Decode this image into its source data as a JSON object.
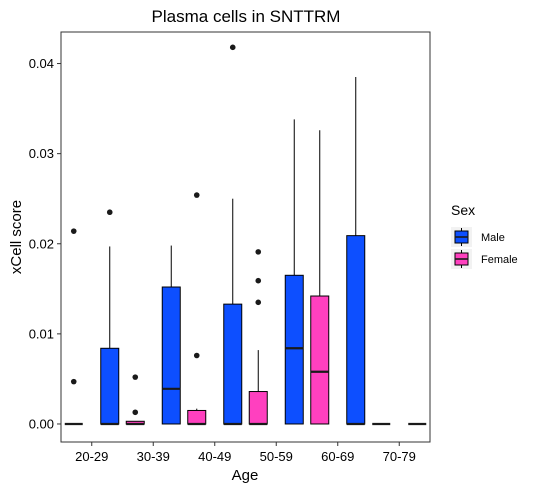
{
  "chart_data": {
    "type": "boxplot",
    "title": "Plasma cells in SNTTRM",
    "xlabel": "Age",
    "ylabel": "xCell score",
    "categories": [
      "20-29",
      "30-39",
      "40-49",
      "50-59",
      "60-69",
      "70-79"
    ],
    "ylim": [
      -0.002,
      0.0435
    ],
    "yticks": [
      0.0,
      0.01,
      0.02,
      0.03,
      0.04
    ],
    "ytick_labels": [
      "0.00",
      "0.01",
      "0.02",
      "0.03",
      "0.04"
    ],
    "grid": false,
    "legend": {
      "title": "Sex",
      "placement": "right"
    },
    "series": [
      {
        "name": "Female",
        "color": "#ff40bf",
        "boxes": [
          {
            "category": "20-29",
            "q1": 0.0,
            "median": 0.0,
            "q3": 0.0,
            "whisker_low": 0.0,
            "whisker_high": 0.0,
            "outliers": [
              0.0214,
              0.0047
            ]
          },
          {
            "category": "30-39",
            "q1": 0.0,
            "median": 0.0,
            "q3": 0.0003,
            "whisker_low": 0.0,
            "whisker_high": 0.0003,
            "outliers": [
              0.0052,
              0.0013
            ]
          },
          {
            "category": "40-49",
            "q1": 0.0,
            "median": 0.0,
            "q3": 0.0015,
            "whisker_low": 0.0,
            "whisker_high": 0.0017,
            "outliers": [
              0.0254,
              0.0076
            ]
          },
          {
            "category": "50-59",
            "q1": 0.0,
            "median": 0.0,
            "q3": 0.0036,
            "whisker_low": 0.0,
            "whisker_high": 0.0082,
            "outliers": [
              0.0191,
              0.0159,
              0.0135
            ]
          },
          {
            "category": "60-69",
            "q1": 0.0,
            "median": 0.0058,
            "q3": 0.0142,
            "whisker_low": 0.0,
            "whisker_high": 0.0326,
            "outliers": []
          },
          {
            "category": "70-79",
            "q1": 0.0,
            "median": 0.0,
            "q3": 0.0,
            "whisker_low": 0.0,
            "whisker_high": 0.0,
            "outliers": []
          }
        ]
      },
      {
        "name": "Male",
        "color": "#0d4fff",
        "boxes": [
          {
            "category": "20-29",
            "q1": 0.0,
            "median": 0.0,
            "q3": 0.0084,
            "whisker_low": 0.0,
            "whisker_high": 0.0197,
            "outliers": [
              0.0235
            ]
          },
          {
            "category": "30-39",
            "q1": 0.0,
            "median": 0.0039,
            "q3": 0.0152,
            "whisker_low": 0.0,
            "whisker_high": 0.0198,
            "outliers": []
          },
          {
            "category": "40-49",
            "q1": 0.0,
            "median": 0.0,
            "q3": 0.0133,
            "whisker_low": 0.0,
            "whisker_high": 0.025,
            "outliers": [
              0.0418
            ]
          },
          {
            "category": "50-59",
            "q1": 0.0,
            "median": 0.0084,
            "q3": 0.0165,
            "whisker_low": 0.0,
            "whisker_high": 0.0338,
            "outliers": []
          },
          {
            "category": "60-69",
            "q1": 0.0,
            "median": 0.0,
            "q3": 0.0209,
            "whisker_low": 0.0,
            "whisker_high": 0.0385,
            "outliers": []
          },
          {
            "category": "70-79",
            "q1": 0.0,
            "median": 0.0,
            "q3": 0.0,
            "whisker_low": 0.0,
            "whisker_high": 0.0,
            "outliers": []
          }
        ]
      }
    ]
  }
}
